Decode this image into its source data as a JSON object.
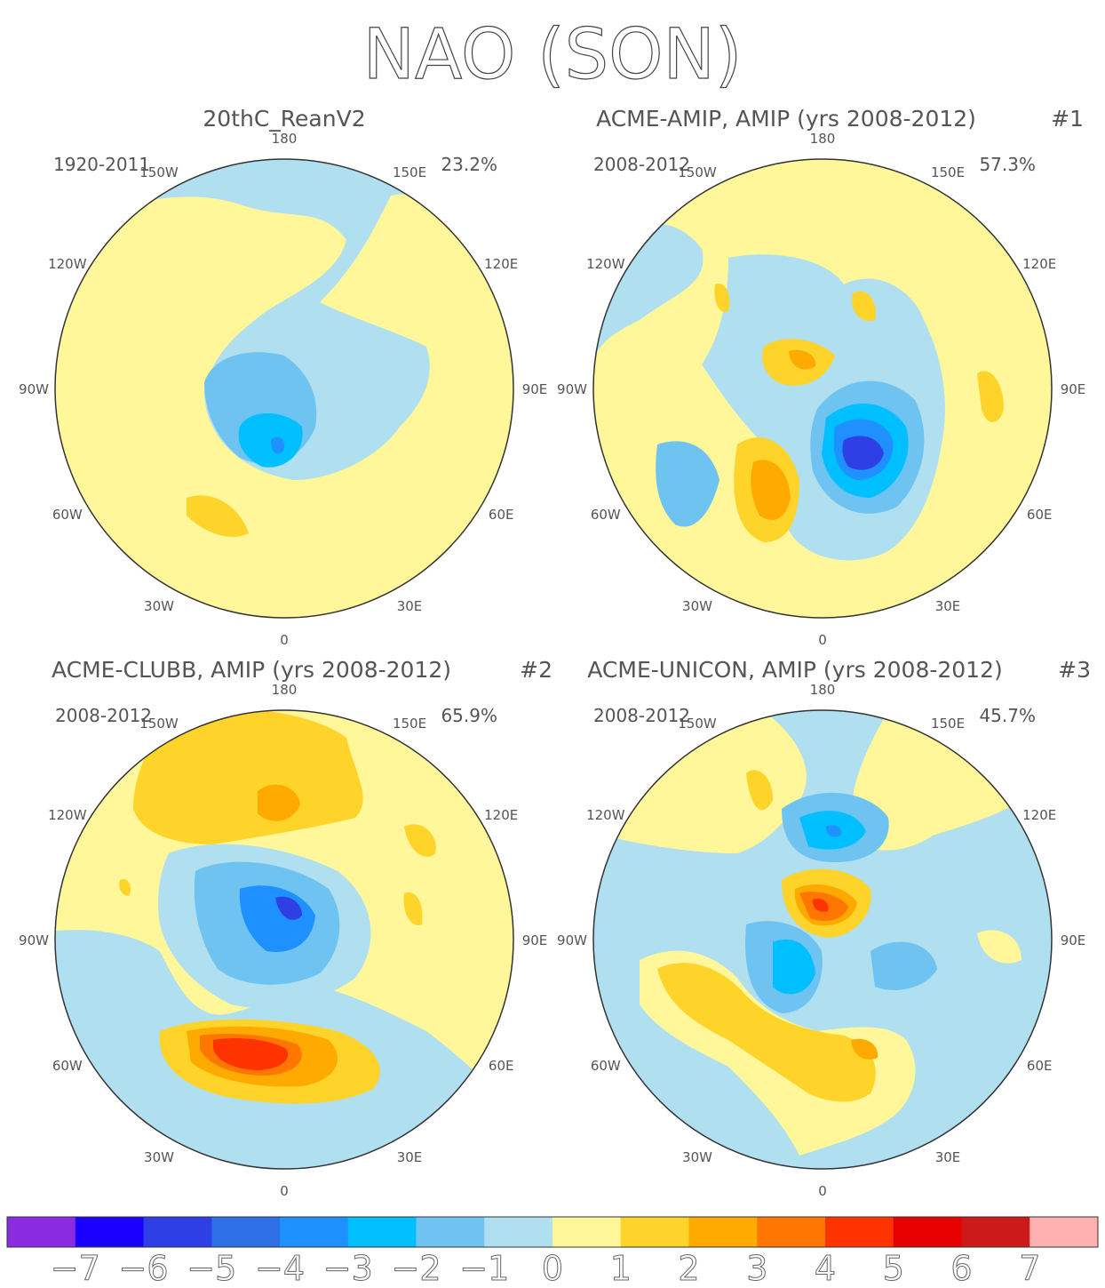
{
  "title": "NAO (SON)",
  "lon_labels": [
    "180",
    "150E",
    "120E",
    "90E",
    "60E",
    "30E",
    "0",
    "30W",
    "60W",
    "90W",
    "120W",
    "150W"
  ],
  "panels": [
    {
      "title": "20thC_ReanV2",
      "tag": "",
      "period": "1920-2011",
      "percent": "23.2%"
    },
    {
      "title": "ACME-AMIP, AMIP (yrs 2008-2012)",
      "tag": "#1",
      "period": "2008-2012",
      "percent": "57.3%"
    },
    {
      "title": "ACME-CLUBB, AMIP (yrs 2008-2012)",
      "tag": "#2",
      "period": "2008-2012",
      "percent": "65.9%"
    },
    {
      "title": "ACME-UNICON, AMIP (yrs 2008-2012)",
      "tag": "#3",
      "period": "2008-2012",
      "percent": "45.7%"
    }
  ],
  "colorbar": {
    "colors": [
      "#8a2be2",
      "#1a00ff",
      "#2f3fe6",
      "#2f6fe6",
      "#1e90ff",
      "#00bfff",
      "#6ec3f0",
      "#b0dff0",
      "#fff799",
      "#ffd42a",
      "#ffaa00",
      "#ff7700",
      "#ff3300",
      "#e60000",
      "#cc1a1a",
      "#ffb0b0"
    ],
    "labels": [
      "-7",
      "-6",
      "-5",
      "-4",
      "-3",
      "-2",
      "-1",
      "0",
      "1",
      "2",
      "3",
      "4",
      "5",
      "6",
      "7"
    ]
  }
}
